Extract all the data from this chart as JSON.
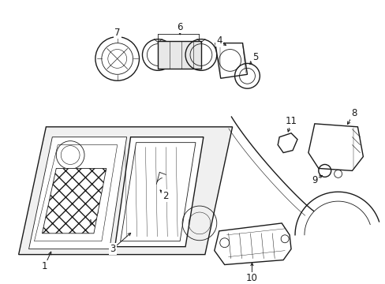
{
  "bg_color": "#ffffff",
  "line_color": "#1a1a1a",
  "line_width": 1.0,
  "thin_line": 0.6,
  "fig_width": 4.89,
  "fig_height": 3.6,
  "dpi": 100,
  "font_size": 8.5
}
